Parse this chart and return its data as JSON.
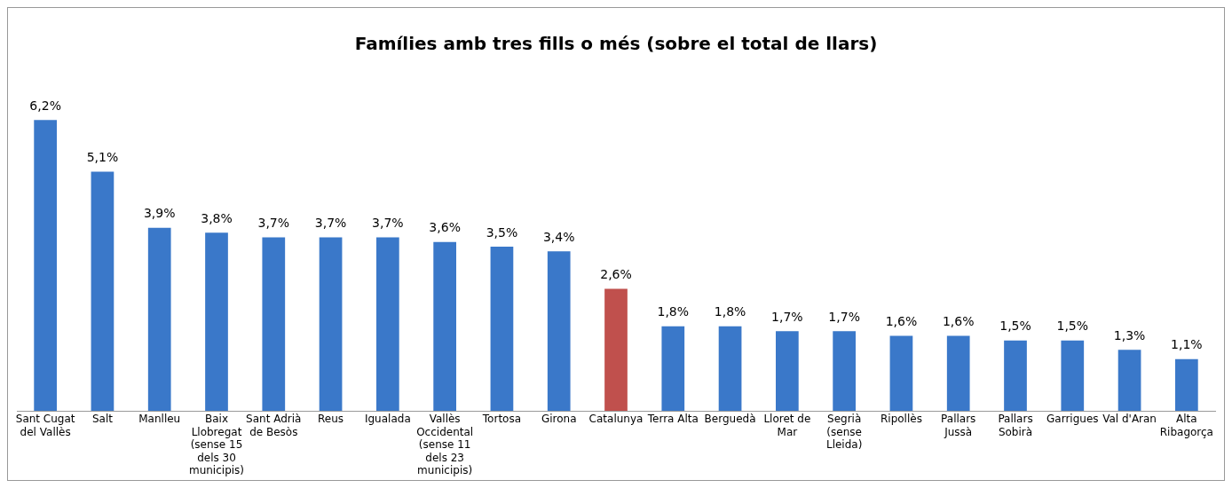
{
  "chart_data": {
    "type": "bar",
    "title": "Famílies amb tres fills o més (sobre el total de llars)",
    "categories": [
      "Sant Cugat del Vallès",
      "Salt",
      "Manlleu",
      "Baix Llobregat (sense 15 dels 30 municipis)",
      "Sant Adrià de Besòs",
      "Reus",
      "Igualada",
      "Vallès Occidental (sense 11 dels 23 municipis)",
      "Tortosa",
      "Girona",
      "Catalunya",
      "Terra Alta",
      "Berguedà",
      "Lloret de Mar",
      "Segrià (sense Lleida)",
      "Ripollès",
      "Pallars Jussà",
      "Pallars Sobirà",
      "Garrigues",
      "Val d'Aran",
      "Alta Ribagorça"
    ],
    "values": [
      6.2,
      5.1,
      3.9,
      3.8,
      3.7,
      3.7,
      3.7,
      3.6,
      3.5,
      3.4,
      2.6,
      1.8,
      1.8,
      1.7,
      1.7,
      1.6,
      1.6,
      1.5,
      1.5,
      1.3,
      1.1
    ],
    "value_labels": [
      "6,2%",
      "5,1%",
      "3,9%",
      "3,8%",
      "3,7%",
      "3,7%",
      "3,7%",
      "3,6%",
      "3,5%",
      "3,4%",
      "2,6%",
      "1,8%",
      "1,8%",
      "1,7%",
      "1,7%",
      "1,6%",
      "1,6%",
      "1,5%",
      "1,5%",
      "1,3%",
      "1,1%"
    ],
    "colors": [
      "#3a78c9",
      "#3a78c9",
      "#3a78c9",
      "#3a78c9",
      "#3a78c9",
      "#3a78c9",
      "#3a78c9",
      "#3a78c9",
      "#3a78c9",
      "#3a78c9",
      "#c0504d",
      "#3a78c9",
      "#3a78c9",
      "#3a78c9",
      "#3a78c9",
      "#3a78c9",
      "#3a78c9",
      "#3a78c9",
      "#3a78c9",
      "#3a78c9",
      "#3a78c9"
    ],
    "grid": false,
    "legend": false
  }
}
